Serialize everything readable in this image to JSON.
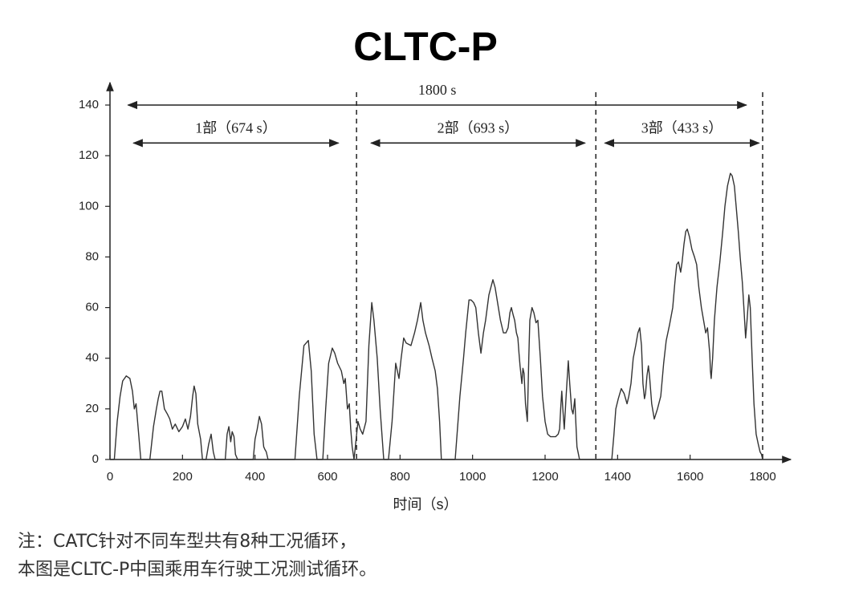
{
  "chart_data": {
    "type": "line",
    "title": "CLTC-P",
    "x_label": "时间（s）",
    "notes": [
      "注：CATC针对不同车型共有8种工况循环，",
      "本图是CLTC-P中国乘用车行驶工况测试循环。"
    ],
    "xlim": [
      0,
      1800
    ],
    "xticks": [
      0,
      200,
      400,
      600,
      800,
      1000,
      1200,
      1400,
      1600,
      1800
    ],
    "ylim": [
      0,
      140
    ],
    "yticks": [
      0,
      20,
      40,
      60,
      80,
      100,
      120,
      140
    ],
    "color": "#333333",
    "dividers": [
      680,
      1340,
      1800
    ],
    "annotations": [
      {
        "text": "1800 s",
        "from": 50,
        "to": 1755,
        "y": 140
      },
      {
        "text": "1部（674 s）",
        "from": 65,
        "to": 630,
        "y": 125
      },
      {
        "text": "2部（693 s）",
        "from": 720,
        "to": 1310,
        "y": 125
      },
      {
        "text": "3部（433 s）",
        "from": 1365,
        "to": 1790,
        "y": 125
      }
    ],
    "x": [
      0,
      12,
      20,
      28,
      35,
      45,
      55,
      62,
      67,
      72,
      78,
      85,
      100,
      110,
      120,
      128,
      133,
      138,
      143,
      150,
      158,
      165,
      172,
      180,
      190,
      200,
      208,
      215,
      222,
      228,
      232,
      237,
      242,
      250,
      255,
      265,
      272,
      279,
      285,
      290,
      318,
      323,
      328,
      333,
      337,
      342,
      346,
      352,
      395,
      400,
      406,
      412,
      418,
      424,
      427,
      431,
      436,
      510,
      522,
      535,
      547,
      555,
      563,
      571,
      587,
      595,
      603,
      613,
      620,
      628,
      638,
      645,
      649,
      655,
      660,
      664,
      668,
      673,
      684,
      690,
      697,
      706,
      714,
      722,
      728,
      737,
      745,
      755,
      768,
      778,
      788,
      797,
      803,
      810,
      817,
      830,
      840,
      848,
      857,
      863,
      870,
      880,
      888,
      897,
      903,
      909,
      914,
      952,
      965,
      975,
      981,
      990,
      996,
      1003,
      1009,
      1016,
      1023,
      1030,
      1036,
      1045,
      1056,
      1062,
      1069,
      1077,
      1085,
      1092,
      1098,
      1103,
      1107,
      1112,
      1116,
      1121,
      1125,
      1128,
      1131,
      1136,
      1139,
      1142,
      1146,
      1151,
      1155,
      1158,
      1164,
      1169,
      1175,
      1180,
      1187,
      1193,
      1200,
      1207,
      1215,
      1229,
      1236,
      1240,
      1243,
      1246,
      1249,
      1253,
      1258,
      1264,
      1268,
      1273,
      1277,
      1282,
      1285,
      1288,
      1295,
      1384,
      1390,
      1395,
      1402,
      1410,
      1418,
      1426,
      1431,
      1437,
      1443,
      1450,
      1456,
      1461,
      1466,
      1470,
      1474,
      1477,
      1481,
      1485,
      1488,
      1494,
      1501,
      1510,
      1519,
      1527,
      1534,
      1543,
      1552,
      1558,
      1563,
      1568,
      1574,
      1578,
      1583,
      1588,
      1592,
      1598,
      1605,
      1612,
      1618,
      1624,
      1631,
      1637,
      1643,
      1648,
      1654,
      1656,
      1658,
      1662,
      1667,
      1674,
      1682,
      1690,
      1696,
      1703,
      1711,
      1716,
      1722,
      1727,
      1733,
      1738,
      1744,
      1749,
      1753,
      1757,
      1762,
      1766,
      1771,
      1776,
      1782,
      1788,
      1793,
      1797,
      1800
    ],
    "values": [
      0,
      0,
      15,
      25,
      31,
      33,
      32,
      27,
      20,
      22,
      12,
      0,
      0,
      0,
      13,
      20,
      24,
      27,
      27,
      20,
      18,
      16,
      12,
      14,
      11,
      13,
      16,
      12,
      17,
      25,
      29,
      26,
      14,
      8,
      0,
      0,
      6,
      10,
      3,
      0,
      0,
      10,
      13,
      7,
      11,
      9,
      2,
      0,
      0,
      8,
      12,
      17,
      14,
      5,
      4,
      3,
      0,
      0,
      25,
      45,
      47,
      35,
      10,
      0,
      0,
      20,
      38,
      44,
      42,
      38,
      35,
      30,
      32,
      20,
      22,
      12,
      5,
      0,
      15,
      12,
      10,
      15,
      45,
      62,
      55,
      40,
      20,
      0,
      0,
      15,
      38,
      32,
      40,
      48,
      46,
      45,
      50,
      55,
      62,
      55,
      50,
      45,
      40,
      35,
      28,
      15,
      0,
      0,
      25,
      40,
      50,
      63,
      63,
      62,
      60,
      50,
      42,
      50,
      55,
      65,
      71,
      68,
      62,
      55,
      50,
      50,
      52,
      58,
      60,
      57,
      55,
      50,
      48,
      42,
      37,
      30,
      36,
      34,
      22,
      15,
      40,
      55,
      60,
      58,
      54,
      55,
      40,
      25,
      15,
      10,
      9,
      9,
      10,
      12,
      20,
      27,
      20,
      12,
      25,
      39,
      30,
      20,
      18,
      24,
      14,
      5,
      0,
      0,
      10,
      20,
      24,
      28,
      26,
      22,
      25,
      30,
      40,
      45,
      50,
      52,
      45,
      30,
      24,
      26,
      33,
      37,
      33,
      22,
      16,
      20,
      25,
      38,
      47,
      53,
      60,
      70,
      77,
      78,
      74,
      78,
      85,
      90,
      91,
      88,
      83,
      80,
      77,
      68,
      60,
      55,
      50,
      52,
      42,
      35,
      32,
      40,
      55,
      68,
      78,
      90,
      100,
      108,
      113,
      112,
      108,
      100,
      90,
      80,
      70,
      58,
      48,
      55,
      65,
      60,
      40,
      22,
      10,
      6,
      3,
      2,
      0
    ]
  }
}
